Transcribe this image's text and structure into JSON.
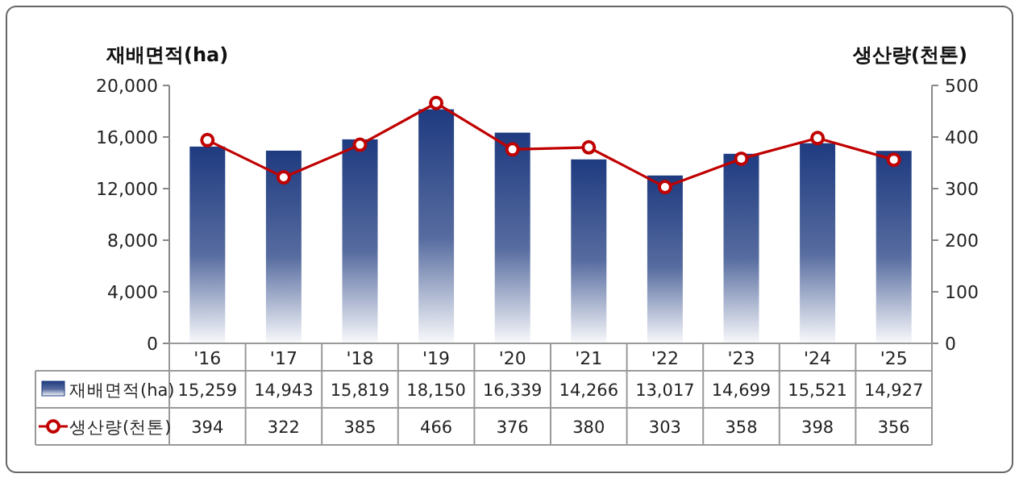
{
  "chart_data": {
    "type": "bar",
    "ylabel": "재배면적(ha)",
    "y2label": "생산량(천톤)",
    "categories": [
      "'16",
      "'17",
      "'18",
      "'19",
      "'20",
      "'21",
      "'22",
      "'23",
      "'24",
      "'25"
    ],
    "series": [
      {
        "name": "재배면적(ha)",
        "color": "#1f3b80",
        "values": [
          15259,
          14943,
          15819,
          18150,
          16339,
          14266,
          13017,
          14699,
          15521,
          14927
        ],
        "value_labels": [
          "15,259",
          "14,943",
          "15,819",
          "18,150",
          "16,339",
          "14,266",
          "13,017",
          "14,699",
          "15,521",
          "14,927"
        ]
      },
      {
        "name": "생산량(천톤)",
        "type": "line",
        "axis": "y2",
        "color": "#c00000",
        "values": [
          394,
          322,
          385,
          466,
          376,
          380,
          303,
          358,
          398,
          356
        ]
      }
    ],
    "ylim": [
      0,
      20000
    ],
    "yticks": [
      0,
      {
        "value": 4000,
        "label": "4,000"
      },
      {
        "value": 8000,
        "label": "8,000"
      },
      {
        "value": 12000,
        "label": "12,000"
      },
      {
        "value": 16000,
        "label": "16,000"
      },
      {
        "value": 20000,
        "label": "20,000"
      }
    ],
    "y2lim": [
      0,
      500
    ],
    "y2ticks": [
      0,
      100,
      200,
      300,
      400,
      500
    ],
    "data_labels": true,
    "legend": "bottom",
    "marker": "circle",
    "line_style": "solid"
  }
}
